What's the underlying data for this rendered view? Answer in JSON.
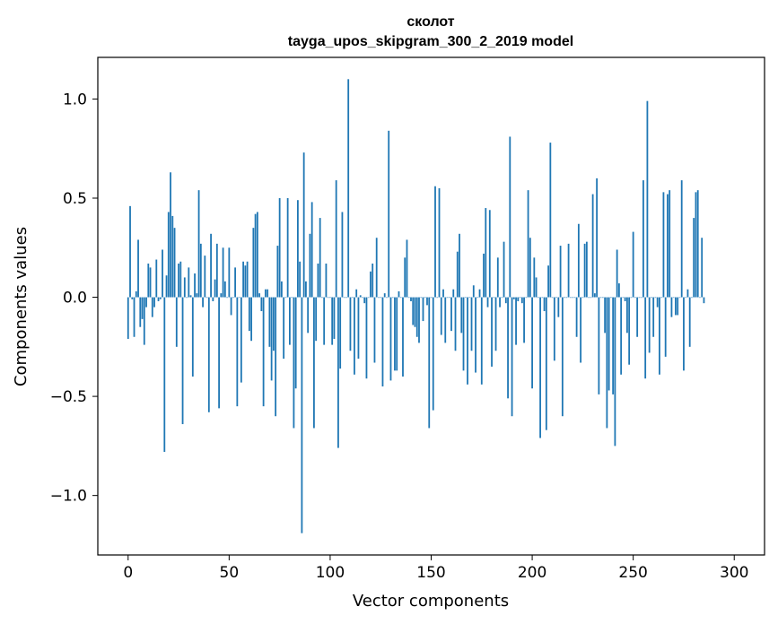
{
  "chart_data": {
    "type": "bar",
    "title": "сколот",
    "subtitle": "tayga_upos_skipgram_300_2_2019 model",
    "xlabel": "Vector components",
    "ylabel": "Components values",
    "xlim": [
      -15,
      315
    ],
    "ylim": [
      -1.3,
      1.21
    ],
    "xticks": [
      0,
      50,
      100,
      150,
      200,
      250,
      300
    ],
    "xtick_labels": [
      "0",
      "50",
      "100",
      "150",
      "200",
      "250",
      "300"
    ],
    "yticks": [
      -1.0,
      -0.5,
      0.0,
      0.5,
      1.0
    ],
    "ytick_labels": [
      "−1.0",
      "−0.5",
      "0.0",
      "0.5",
      "1.0"
    ],
    "grid": false,
    "bar_color": "#1f77b4",
    "series": [
      {
        "values": [
          -0.21,
          0.46,
          -0.01,
          -0.2,
          0.03,
          0.29,
          -0.15,
          -0.11,
          -0.24,
          -0.05,
          0.17,
          0.15,
          -0.1,
          -0.05,
          0.19,
          -0.02,
          -0.01,
          0.24,
          -0.78,
          0.11,
          0.43,
          0.63,
          0.41,
          0.35,
          -0.25,
          0.17,
          0.18,
          -0.64,
          0.1,
          0.0,
          0.15,
          0.01,
          -0.4,
          0.12,
          0.02,
          0.54,
          0.27,
          -0.05,
          0.21,
          0.0,
          -0.58,
          0.32,
          -0.02,
          0.09,
          0.27,
          -0.56,
          0.02,
          0.25,
          0.08,
          0.0,
          0.25,
          -0.09,
          0.0,
          0.15,
          -0.55,
          0.0,
          -0.43,
          0.18,
          0.16,
          0.18,
          -0.17,
          -0.22,
          0.35,
          0.42,
          0.43,
          0.02,
          -0.07,
          -0.55,
          0.04,
          0.04,
          -0.25,
          -0.42,
          -0.27,
          -0.6,
          0.26,
          0.5,
          0.08,
          -0.31,
          0.0,
          0.5,
          -0.24,
          0.0,
          -0.66,
          -0.46,
          0.49,
          0.18,
          -1.19,
          0.73,
          0.08,
          -0.18,
          0.32,
          0.48,
          -0.66,
          -0.22,
          0.17,
          0.4,
          0.0,
          -0.24,
          0.17,
          0.0,
          0.0,
          -0.24,
          -0.21,
          0.59,
          -0.76,
          -0.36,
          0.43,
          0.0,
          0.0,
          1.1,
          -0.27,
          0.0,
          -0.39,
          0.04,
          -0.31,
          0.01,
          0.0,
          -0.03,
          -0.41,
          0.0,
          0.13,
          0.17,
          -0.33,
          0.3,
          0.0,
          0.0,
          -0.45,
          0.02,
          0.0,
          0.84,
          -0.42,
          0.0,
          -0.37,
          -0.37,
          0.03,
          0.0,
          -0.4,
          0.2,
          0.29,
          0.0,
          -0.02,
          -0.14,
          -0.15,
          -0.2,
          -0.23,
          0.0,
          -0.12,
          0.0,
          -0.04,
          -0.66,
          0.0,
          -0.57,
          0.56,
          0.0,
          0.55,
          -0.19,
          0.04,
          -0.23,
          0.0,
          0.0,
          -0.17,
          0.04,
          -0.27,
          0.23,
          0.32,
          -0.18,
          -0.37,
          0.0,
          -0.44,
          0.0,
          -0.27,
          0.06,
          -0.38,
          0.0,
          0.04,
          -0.44,
          0.22,
          0.45,
          -0.05,
          0.44,
          -0.35,
          0.0,
          -0.27,
          0.2,
          -0.05,
          0.0,
          0.28,
          -0.03,
          -0.51,
          0.81,
          -0.6,
          -0.01,
          -0.24,
          -0.02,
          0.0,
          -0.03,
          -0.23,
          0.0,
          0.54,
          0.3,
          -0.46,
          0.2,
          0.1,
          0.0,
          -0.71,
          0.0,
          -0.07,
          -0.67,
          0.16,
          0.78,
          0.0,
          -0.32,
          0.0,
          -0.1,
          0.26,
          -0.6,
          0.0,
          0.0,
          0.27,
          0.0,
          0.0,
          0.0,
          -0.2,
          0.37,
          -0.33,
          0.0,
          0.27,
          0.28,
          0.0,
          0.0,
          0.52,
          0.02,
          0.6,
          -0.49,
          0.0,
          0.0,
          -0.18,
          -0.66,
          -0.47,
          0.0,
          -0.49,
          -0.75,
          0.24,
          0.07,
          -0.39,
          0.0,
          -0.02,
          -0.18,
          -0.34,
          0.0,
          0.33,
          0.0,
          -0.2,
          0.0,
          0.0,
          0.59,
          -0.41,
          0.99,
          -0.28,
          0.0,
          -0.2,
          0.0,
          -0.05,
          -0.39,
          0.0,
          0.53,
          -0.3,
          0.52,
          0.54,
          -0.1,
          0.0,
          -0.09,
          -0.09,
          0.0,
          0.59,
          -0.37,
          0.0,
          0.04,
          -0.25,
          0.0,
          0.4,
          0.53,
          0.54,
          0.0,
          0.3,
          -0.03
        ]
      }
    ]
  }
}
